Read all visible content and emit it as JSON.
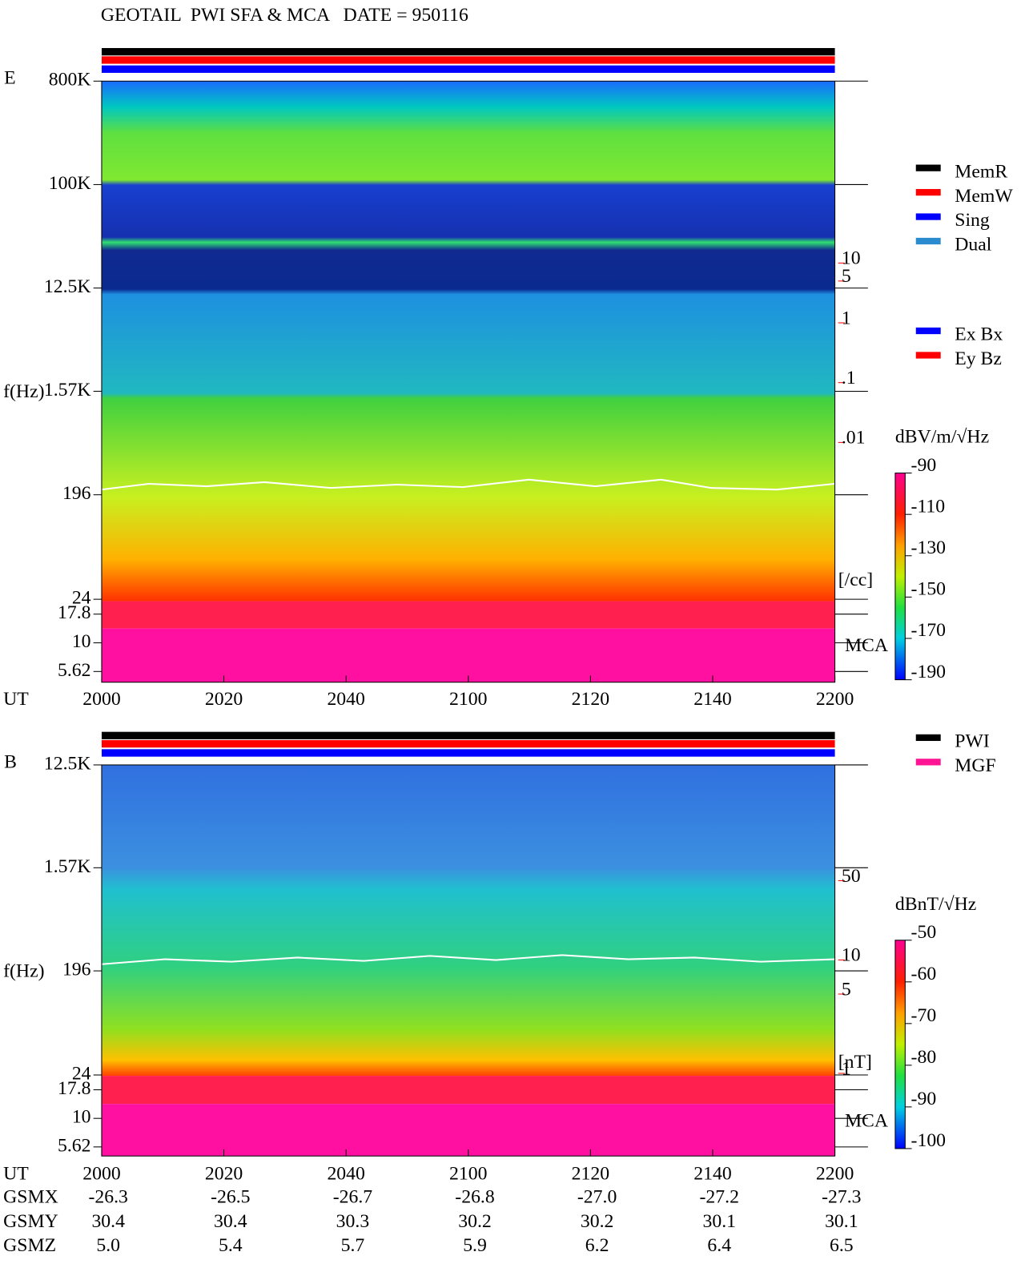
{
  "header": {
    "title": "GEOTAIL  PWI SFA & MCA   DATE = 950116"
  },
  "chart_data": [
    {
      "type": "spectrogram",
      "panel": "E",
      "ylabel": "f(Hz)",
      "xlabel": "UT",
      "band_label": "MCA",
      "log_scale": true,
      "ylim": [
        5.62,
        800000
      ],
      "yticks": [
        {
          "value": 800000,
          "label": "800K"
        },
        {
          "value": 100000,
          "label": "100K"
        },
        {
          "value": 12500,
          "label": "12.5K"
        },
        {
          "value": 1570,
          "label": "1.57K"
        },
        196,
        24,
        17.8,
        10,
        5.62
      ],
      "xlim": [
        "2000",
        "2200"
      ],
      "xticks": [
        "2000",
        "2020",
        "2040",
        "2100",
        "2120",
        "2140",
        "2200"
      ],
      "y2label": "[/cc]",
      "y2lim": [
        0.01,
        10
      ],
      "y2ticks": [
        10,
        5,
        1,
        {
          "value": 0.1,
          "label": ".1"
        },
        {
          "value": 0.01,
          "label": ".01"
        }
      ],
      "colorbar": {
        "label": "dBV/m/√Hz",
        "lim": [
          -190,
          -90
        ],
        "ticks": [
          -90,
          -110,
          -130,
          -150,
          -170,
          -190
        ]
      },
      "legend": [
        {
          "name": "MemR",
          "color": "#000000"
        },
        {
          "name": "MemW",
          "color": "#ff0000"
        },
        {
          "name": "Sing",
          "color": "#0000ff"
        },
        {
          "name": "Dual",
          "color": "#2a8ccf"
        }
      ],
      "legend2": [
        {
          "name": "Ex Bx",
          "color": "#0000ff"
        },
        {
          "name": "Ey Bz",
          "color": "#ff0000"
        }
      ]
    },
    {
      "type": "spectrogram",
      "panel": "B",
      "ylabel": "f(Hz)",
      "xlabel": "UT",
      "band_label": "MCA",
      "log_scale": true,
      "ylim": [
        5.62,
        12500
      ],
      "yticks": [
        {
          "value": 12500,
          "label": "12.5K"
        },
        {
          "value": 1570,
          "label": "1.57K"
        },
        196,
        24,
        17.8,
        10,
        5.62
      ],
      "xlim": [
        "2000",
        "2200"
      ],
      "xticks": [
        "2000",
        "2020",
        "2040",
        "2100",
        "2120",
        "2140",
        "2200"
      ],
      "y2label": "[nT]",
      "y2lim": [
        1,
        50
      ],
      "y2ticks": [
        50,
        10,
        5,
        1
      ],
      "colorbar": {
        "label": "dBnT/√Hz",
        "lim": [
          -100,
          -50
        ],
        "ticks": [
          -50,
          -60,
          -70,
          -80,
          -90,
          -100
        ]
      },
      "legend": [
        {
          "name": "PWI",
          "color": "#000000"
        },
        {
          "name": "MGF",
          "color": "#ff1493"
        }
      ]
    }
  ],
  "orbit": {
    "rows": [
      {
        "name": "GSMX",
        "values": [
          "-26.3",
          "-26.5",
          "-26.7",
          "-26.8",
          "-27.0",
          "-27.2",
          "-27.3"
        ]
      },
      {
        "name": "GSMY",
        "values": [
          "30.4",
          "30.4",
          "30.3",
          "30.2",
          "30.2",
          "30.1",
          "30.1"
        ]
      },
      {
        "name": "GSMZ",
        "values": [
          "5.0",
          "5.4",
          "5.7",
          "5.9",
          "6.2",
          "6.4",
          "6.5"
        ]
      }
    ]
  }
}
